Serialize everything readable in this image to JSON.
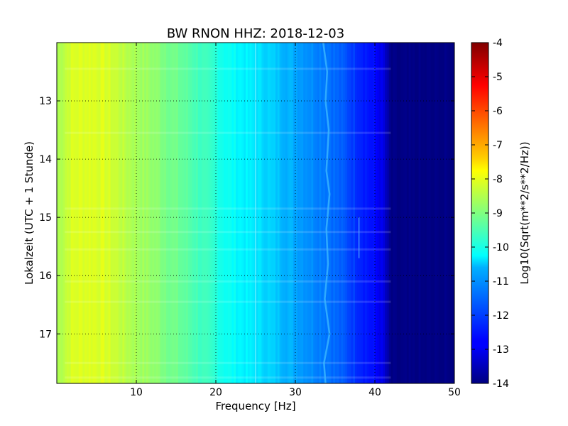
{
  "chart_data": {
    "type": "heatmap",
    "title": "BW RNON HHZ: 2018-12-03",
    "xlabel": "Frequency [Hz]",
    "ylabel": "Lokalzeit (UTC + 1 Stunde)",
    "xlim": [
      0,
      50
    ],
    "ylim": [
      12.0,
      17.85
    ],
    "y_inverted": true,
    "x_ticks": [
      "10",
      "20",
      "30",
      "40",
      "50"
    ],
    "x_tick_values": [
      10,
      20,
      30,
      40,
      50
    ],
    "y_ticks": [
      "13",
      "14",
      "15",
      "16",
      "17"
    ],
    "y_tick_values": [
      13,
      14,
      15,
      16,
      17
    ],
    "grid": true,
    "colormap": "jet",
    "colorbar": {
      "label": "Log10(Sqrt(m**2/s**2/Hz))",
      "range": [
        -14,
        -4
      ],
      "ticks": [
        "-4",
        "-5",
        "-6",
        "-7",
        "-8",
        "-9",
        "-10",
        "-11",
        "-12",
        "-13",
        "-14"
      ],
      "tick_values": [
        -4,
        -5,
        -6,
        -7,
        -8,
        -9,
        -10,
        -11,
        -12,
        -13,
        -14
      ]
    },
    "spectrum_profile": {
      "frequency_hz": [
        0,
        2,
        4,
        6,
        8,
        10,
        12,
        14,
        16,
        18,
        20,
        22,
        24,
        26,
        28,
        30,
        32,
        34,
        36,
        38,
        40,
        41,
        42,
        45,
        50
      ],
      "log10_amplitude": [
        -8.6,
        -8.1,
        -8.05,
        -8.1,
        -8.35,
        -8.6,
        -8.8,
        -9.05,
        -9.3,
        -9.6,
        -9.9,
        -10.2,
        -10.4,
        -10.6,
        -10.85,
        -11.1,
        -11.35,
        -11.55,
        -11.9,
        -12.3,
        -12.7,
        -13.0,
        -14.0,
        -14.0,
        -14.0
      ]
    },
    "features": {
      "line_frequency_hz": 25,
      "wandering_line_hz": [
        {
          "t": 12.0,
          "f": 33.5
        },
        {
          "t": 12.5,
          "f": 34.0
        },
        {
          "t": 13.0,
          "f": 33.8
        },
        {
          "t": 13.5,
          "f": 34.2
        },
        {
          "t": 14.2,
          "f": 33.9
        },
        {
          "t": 14.6,
          "f": 34.3
        },
        {
          "t": 15.2,
          "f": 33.9
        },
        {
          "t": 15.8,
          "f": 34.1
        },
        {
          "t": 16.4,
          "f": 33.7
        },
        {
          "t": 17.0,
          "f": 34.3
        },
        {
          "t": 17.5,
          "f": 33.6
        },
        {
          "t": 17.85,
          "f": 33.8
        }
      ],
      "short_line": {
        "f": 38,
        "t_start": 15.0,
        "t_end": 15.7
      },
      "broadband_events_hours": [
        12.45,
        13.55,
        14.85,
        15.25,
        15.55,
        16.1,
        16.45,
        17.5,
        17.75
      ]
    }
  }
}
